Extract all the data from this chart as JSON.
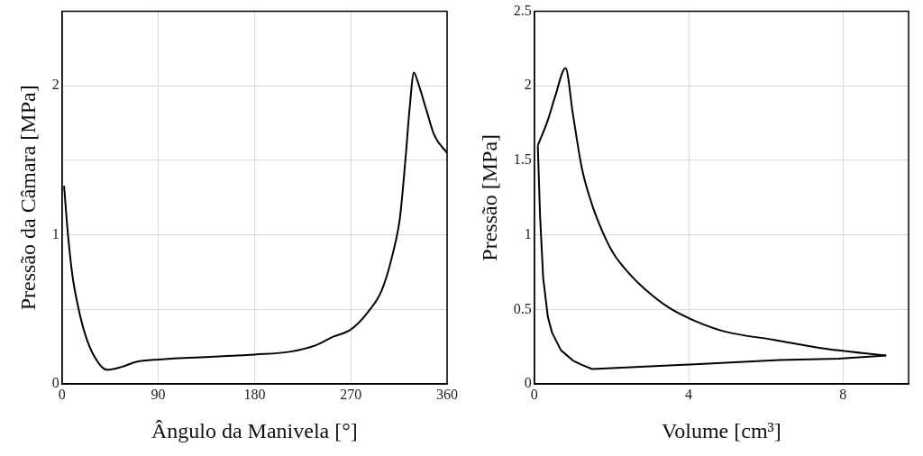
{
  "chart_data": [
    {
      "type": "line",
      "xlabel": "Ângulo da Manivela [°]",
      "ylabel": "Pressão da Câmara [MPa]",
      "xlim": [
        0,
        360
      ],
      "ylim": [
        0,
        2.5
      ],
      "xticks": [
        0,
        90,
        180,
        270,
        360
      ],
      "yticks": [
        0,
        {
          "value": 0.5,
          "label": null
        },
        1,
        {
          "value": 1.5,
          "label": null
        },
        2
      ],
      "grid": true,
      "legend": false,
      "marker": "none",
      "line_style": "solid",
      "series": [
        {
          "color": "#000000",
          "x": [
            1.9,
            5.6,
            9.7,
            15.3,
            22.2,
            30.6,
            41.7,
            55.6,
            69.5,
            90,
            142,
            180,
            214,
            236,
            253,
            270,
            285,
            299,
            309,
            316,
            321,
            325,
            329,
            332,
            341,
            348,
            360
          ],
          "values": [
            1.33,
            1.0,
            0.73,
            0.51,
            0.32,
            0.18,
            0.095,
            0.114,
            0.148,
            0.164,
            0.183,
            0.197,
            0.217,
            0.256,
            0.315,
            0.365,
            0.473,
            0.63,
            0.867,
            1.12,
            1.5,
            1.85,
            2.09,
            2.04,
            1.83,
            1.67,
            1.55
          ]
        }
      ]
    },
    {
      "type": "line",
      "xlabel": "Volume [cm³]",
      "ylabel": "Pressão [MPa]",
      "xlim": [
        0,
        9.7
      ],
      "ylim": [
        0,
        2.5
      ],
      "xticks": [
        0,
        4,
        8
      ],
      "yticks": [
        0,
        0.5,
        1,
        1.5,
        2,
        2.5
      ],
      "grid": true,
      "legend": false,
      "marker": "none",
      "line_style": "solid",
      "series": [
        {
          "color": "#000000",
          "x": [
            0.09,
            0.35,
            0.54,
            0.81,
            1.0,
            1.23,
            1.5,
            1.77,
            2.04,
            2.46,
            2.85,
            3.5,
            4.19,
            4.96,
            6.23,
            7.42,
            9.12
          ],
          "values": [
            1.6,
            1.77,
            1.93,
            2.12,
            1.81,
            1.45,
            1.2,
            1.02,
            0.88,
            0.74,
            0.64,
            0.51,
            0.42,
            0.35,
            0.295,
            0.24,
            0.19
          ]
        },
        {
          "color": "#000000",
          "x": [
            9.12,
            7.88,
            6.35,
            4.04,
            1.5,
            1.23,
            1.0,
            0.69,
            0.46,
            0.35,
            0.23,
            0.15,
            0.09
          ],
          "values": [
            0.19,
            0.17,
            0.16,
            0.13,
            0.1,
            0.128,
            0.157,
            0.226,
            0.344,
            0.45,
            0.71,
            1.12,
            1.6
          ]
        }
      ]
    }
  ]
}
